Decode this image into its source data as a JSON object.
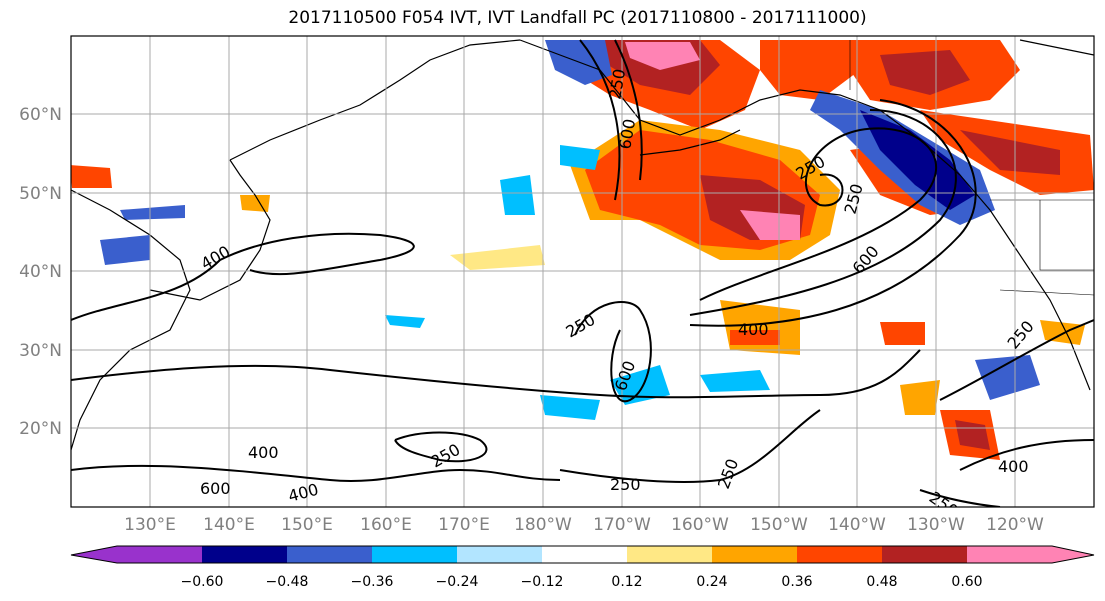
{
  "title": "2017110500 F054 IVT, IVT Landfall PC (2017110800 - 2017111000)",
  "lat_ticks": [
    "60°N",
    "50°N",
    "40°N",
    "30°N",
    "20°N"
  ],
  "lon_ticks": [
    "130°E",
    "140°E",
    "150°E",
    "160°E",
    "170°E",
    "180°W",
    "170°W",
    "160°W",
    "150°W",
    "140°W",
    "130°W",
    "120°W"
  ],
  "contour_labels": [
    "250",
    "400",
    "600",
    "250",
    "250",
    "600",
    "400",
    "250",
    "600",
    "400",
    "250",
    "250",
    "250",
    "250",
    "400",
    "600",
    "400",
    "250"
  ],
  "colorbar": {
    "colors": [
      "#9932cc",
      "#00008b",
      "#3a5fcd",
      "#00bfff",
      "#b2e5ff",
      "#ffffff",
      "#ffe885",
      "#ffa500",
      "#ff4500",
      "#b22222",
      "#ff83b4"
    ],
    "ticks": [
      "−0.60",
      "−0.48",
      "−0.36",
      "−0.24",
      "−0.12",
      "0.12",
      "0.24",
      "0.36",
      "0.48",
      "0.60"
    ]
  },
  "colors": {
    "axis_label": "#808080",
    "grid": "#a9a9a9"
  }
}
